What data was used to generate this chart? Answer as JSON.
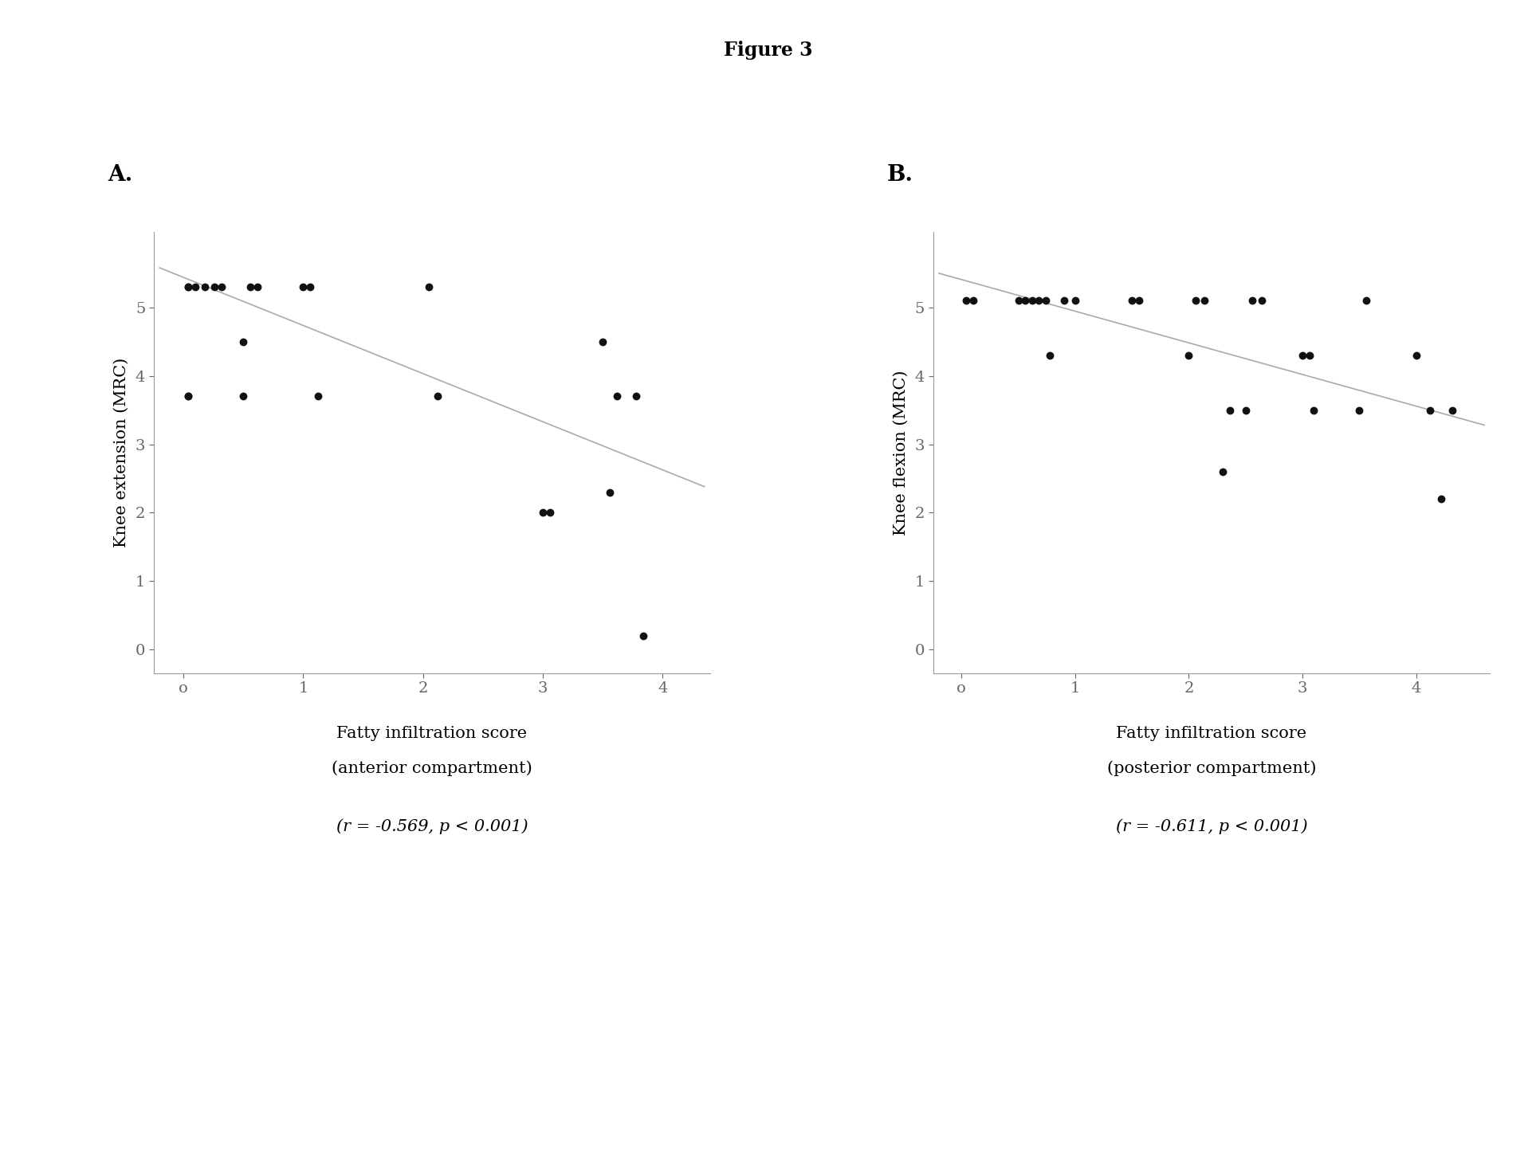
{
  "title": "Figure 3",
  "panel_A": {
    "label": "A.",
    "x": [
      0.04,
      0.1,
      0.18,
      0.26,
      0.32,
      0.04,
      0.5,
      0.5,
      0.56,
      0.62,
      1.0,
      1.06,
      1.12,
      2.05,
      2.12,
      3.0,
      3.06,
      3.5,
      3.56,
      3.62,
      3.78,
      3.84,
      0.04,
      0.04
    ],
    "y": [
      5.3,
      5.3,
      5.3,
      5.3,
      5.3,
      3.7,
      3.7,
      4.5,
      5.3,
      5.3,
      5.3,
      5.3,
      3.7,
      5.3,
      3.7,
      2.0,
      2.0,
      4.5,
      2.3,
      3.7,
      3.7,
      0.2,
      5.3,
      3.7
    ],
    "xlabel_line1": "Fatty infiltration score",
    "xlabel_line2": "(anterior compartment)",
    "ylabel": "Knee extension (MRC)",
    "stat_label": "(r = -0.569, p < 0.001)",
    "xlim": [
      -0.25,
      4.4
    ],
    "ylim": [
      -0.35,
      6.1
    ],
    "xtick_labels": [
      "o",
      "1",
      "2",
      "3",
      "4"
    ],
    "xtick_vals": [
      0,
      1,
      2,
      3,
      4
    ],
    "yticks": [
      0,
      1,
      2,
      3,
      4,
      5
    ],
    "trendline_x": [
      -0.2,
      4.35
    ],
    "trendline_y": [
      5.58,
      2.38
    ]
  },
  "panel_B": {
    "label": "B.",
    "x": [
      0.04,
      0.1,
      0.5,
      0.56,
      0.62,
      0.68,
      0.74,
      0.9,
      1.0,
      1.5,
      1.56,
      2.0,
      2.06,
      2.14,
      2.5,
      2.56,
      2.64,
      3.0,
      3.06,
      3.5,
      3.56,
      4.0,
      4.12,
      4.22,
      4.32,
      0.78,
      2.3,
      2.36,
      3.1
    ],
    "y": [
      5.1,
      5.1,
      5.1,
      5.1,
      5.1,
      5.1,
      5.1,
      5.1,
      5.1,
      5.1,
      5.1,
      4.3,
      5.1,
      5.1,
      3.5,
      5.1,
      5.1,
      4.3,
      4.3,
      3.5,
      5.1,
      4.3,
      3.5,
      2.2,
      3.5,
      4.3,
      2.6,
      3.5,
      3.5
    ],
    "xlabel_line1": "Fatty infiltration score",
    "xlabel_line2": "(posterior compartment)",
    "ylabel": "Knee flexion (MRC)",
    "stat_label": "(r = -0.611, p < 0.001)",
    "xlim": [
      -0.25,
      4.65
    ],
    "ylim": [
      -0.35,
      6.1
    ],
    "xtick_labels": [
      "o",
      "1",
      "2",
      "3",
      "4"
    ],
    "xtick_vals": [
      0,
      1,
      2,
      3,
      4
    ],
    "yticks": [
      0,
      1,
      2,
      3,
      4,
      5
    ],
    "trendline_x": [
      -0.2,
      4.6
    ],
    "trendline_y": [
      5.5,
      3.28
    ]
  },
  "background_color": "#ffffff",
  "dot_color": "#111111",
  "dot_size": 50,
  "line_color": "#aaaaaa",
  "line_width": 1.2,
  "title_fontsize": 17,
  "label_fontsize": 20,
  "tick_fontsize": 14,
  "stat_fontsize": 15,
  "axis_label_fontsize": 15
}
